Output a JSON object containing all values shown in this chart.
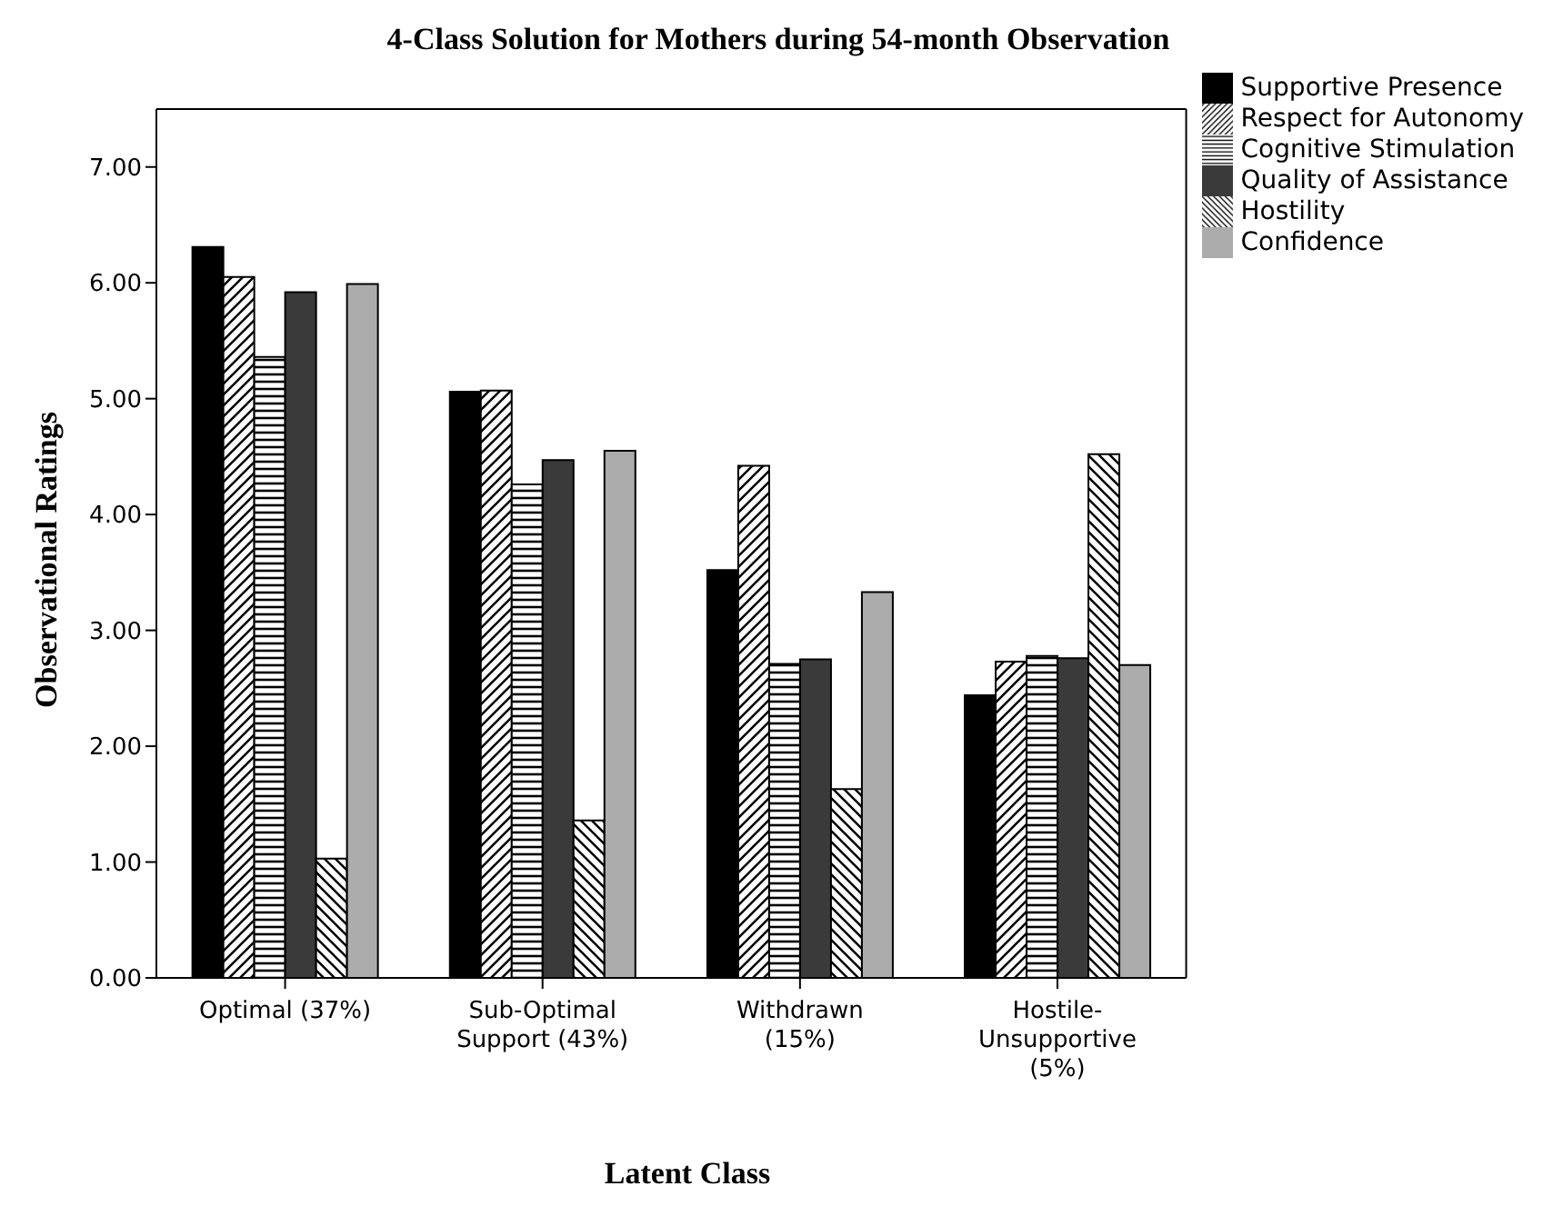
{
  "chart_data": {
    "type": "bar",
    "title": "4-Class Solution for Mothers during 54-month Observation",
    "xlabel": "Latent Class",
    "ylabel": "Observational Ratings",
    "categories": [
      "Optimal (37%)",
      "Sub-Optimal Support (43%)",
      "Withdrawn (15%)",
      "Hostile-Unsupportive (5%)"
    ],
    "series": [
      {
        "name": "Supportive Presence",
        "color": "#000000",
        "values": [
          6.31,
          5.06,
          3.52,
          2.44
        ]
      },
      {
        "name": "Respect for Autonomy",
        "color": "#000000",
        "values": [
          6.05,
          5.07,
          4.42,
          2.73
        ]
      },
      {
        "name": "Cognitive Stimulation",
        "color": "#000000",
        "values": [
          5.36,
          4.26,
          2.71,
          2.78
        ]
      },
      {
        "name": "Quality of Assistance",
        "color": "#3a3a3a",
        "values": [
          5.92,
          4.47,
          2.75,
          2.76
        ]
      },
      {
        "name": "Hostility",
        "color": "#000000",
        "values": [
          1.03,
          1.36,
          1.63,
          4.52
        ]
      },
      {
        "name": "Confidence",
        "color": "#acacac",
        "values": [
          5.99,
          4.55,
          3.33,
          2.7
        ]
      }
    ],
    "ylim": [
      0,
      7.5
    ],
    "yticks": [
      {
        "value": 0,
        "label": "0.00"
      },
      {
        "value": 1,
        "label": "1.00"
      },
      {
        "value": 2,
        "label": "2.00"
      },
      {
        "value": 3,
        "label": "3.00"
      },
      {
        "value": 4,
        "label": "4.00"
      },
      {
        "value": 5,
        "label": "5.00"
      },
      {
        "value": 6,
        "label": "6.00"
      },
      {
        "value": 7,
        "label": "7.00"
      }
    ],
    "grid": false,
    "legend": "top right"
  }
}
